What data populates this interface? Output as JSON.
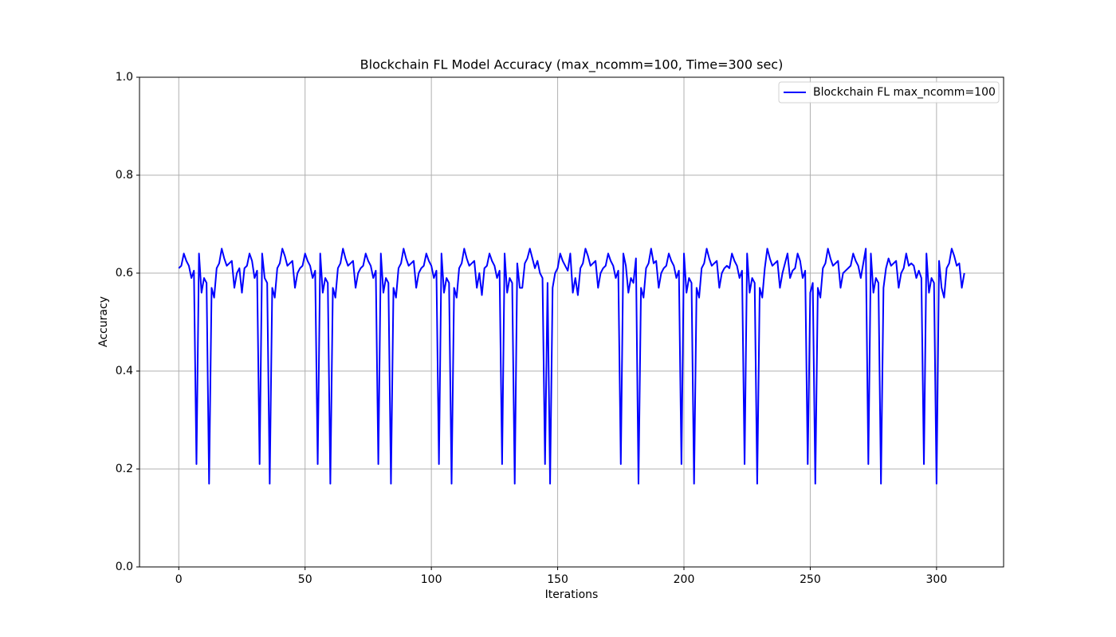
{
  "chart_data": {
    "type": "line",
    "title": "Blockchain FL Model Accuracy (max_ncomm=100, Time=300 sec)",
    "x_label": "Iterations",
    "y_label": "Accuracy",
    "x": [
      0,
      1,
      2,
      3,
      4,
      5,
      6,
      7,
      8,
      9,
      10,
      11,
      12,
      13,
      14,
      15,
      16,
      17,
      18,
      19,
      20,
      21,
      22,
      23,
      24,
      25,
      26,
      27,
      28,
      29,
      30,
      31,
      32,
      33,
      34,
      35,
      36,
      37,
      38,
      39,
      40,
      41,
      42,
      43,
      44,
      45,
      46,
      47,
      48,
      49,
      50,
      51,
      52,
      53,
      54,
      55,
      56,
      57,
      58,
      59,
      60,
      61,
      62,
      63,
      64,
      65,
      66,
      67,
      68,
      69,
      70,
      71,
      72,
      73,
      74,
      75,
      76,
      77,
      78,
      79,
      80,
      81,
      82,
      83,
      84,
      85,
      86,
      87,
      88,
      89,
      90,
      91,
      92,
      93,
      94,
      95,
      96,
      97,
      98,
      99,
      100,
      101,
      102,
      103,
      104,
      105,
      106,
      107,
      108,
      109,
      110,
      111,
      112,
      113,
      114,
      115,
      116,
      117,
      118,
      119,
      120,
      121,
      122,
      123,
      124,
      125,
      126,
      127,
      128,
      129,
      130,
      131,
      132,
      133,
      134,
      135,
      136,
      137,
      138,
      139,
      140,
      141,
      142,
      143,
      144,
      145,
      146,
      147,
      148,
      149,
      150,
      151,
      152,
      153,
      154,
      155,
      156,
      157,
      158,
      159,
      160,
      161,
      162,
      163,
      164,
      165,
      166,
      167,
      168,
      169,
      170,
      171,
      172,
      173,
      174,
      175,
      176,
      177,
      178,
      179,
      180,
      181,
      182,
      183,
      184,
      185,
      186,
      187,
      188,
      189,
      190,
      191,
      192,
      193,
      194,
      195,
      196,
      197,
      198,
      199,
      200,
      201,
      202,
      203,
      204,
      205,
      206,
      207,
      208,
      209,
      210,
      211,
      212,
      213,
      214,
      215,
      216,
      217,
      218,
      219,
      220,
      221,
      222,
      223,
      224,
      225,
      226,
      227,
      228,
      229,
      230,
      231,
      232,
      233,
      234,
      235,
      236,
      237,
      238,
      239,
      240,
      241,
      242,
      243,
      244,
      245,
      246,
      247,
      248,
      249,
      250,
      251,
      252,
      253,
      254,
      255,
      256,
      257,
      258,
      259,
      260,
      261,
      262,
      263,
      264,
      265,
      266,
      267,
      268,
      269,
      270,
      271,
      272,
      273,
      274,
      275,
      276,
      277,
      278,
      279,
      280,
      281,
      282,
      283,
      284,
      285,
      286,
      287,
      288,
      289,
      290,
      291,
      292,
      293,
      294,
      295,
      296,
      297,
      298,
      299,
      300,
      301,
      302,
      303,
      304,
      305,
      306,
      307,
      308,
      309,
      310,
      311
    ],
    "series": [
      {
        "name": "Blockchain FL max_ncomm=100",
        "color": "#0000ff",
        "values": [
          0.61,
          0.615,
          0.64,
          0.625,
          0.615,
          0.59,
          0.605,
          0.21,
          0.64,
          0.56,
          0.59,
          0.58,
          0.17,
          0.57,
          0.55,
          0.61,
          0.62,
          0.65,
          0.63,
          0.615,
          0.62,
          0.625,
          0.57,
          0.6,
          0.61,
          0.56,
          0.61,
          0.615,
          0.64,
          0.625,
          0.59,
          0.605,
          0.21,
          0.64,
          0.59,
          0.58,
          0.17,
          0.57,
          0.55,
          0.61,
          0.62,
          0.65,
          0.635,
          0.615,
          0.62,
          0.625,
          0.57,
          0.6,
          0.61,
          0.615,
          0.64,
          0.625,
          0.615,
          0.59,
          0.605,
          0.21,
          0.64,
          0.56,
          0.59,
          0.58,
          0.17,
          0.57,
          0.55,
          0.61,
          0.62,
          0.65,
          0.63,
          0.615,
          0.62,
          0.625,
          0.57,
          0.6,
          0.61,
          0.615,
          0.64,
          0.625,
          0.615,
          0.59,
          0.605,
          0.21,
          0.64,
          0.56,
          0.59,
          0.58,
          0.17,
          0.57,
          0.55,
          0.61,
          0.62,
          0.65,
          0.63,
          0.615,
          0.62,
          0.625,
          0.57,
          0.6,
          0.61,
          0.615,
          0.64,
          0.625,
          0.615,
          0.59,
          0.605,
          0.21,
          0.64,
          0.56,
          0.59,
          0.58,
          0.17,
          0.57,
          0.55,
          0.61,
          0.62,
          0.65,
          0.63,
          0.615,
          0.62,
          0.625,
          0.57,
          0.6,
          0.555,
          0.61,
          0.615,
          0.64,
          0.625,
          0.615,
          0.59,
          0.605,
          0.21,
          0.64,
          0.56,
          0.59,
          0.58,
          0.17,
          0.62,
          0.57,
          0.57,
          0.62,
          0.63,
          0.65,
          0.63,
          0.61,
          0.625,
          0.6,
          0.59,
          0.21,
          0.58,
          0.17,
          0.57,
          0.6,
          0.61,
          0.64,
          0.625,
          0.615,
          0.605,
          0.64,
          0.56,
          0.59,
          0.555,
          0.61,
          0.62,
          0.65,
          0.635,
          0.615,
          0.62,
          0.625,
          0.57,
          0.6,
          0.61,
          0.615,
          0.64,
          0.625,
          0.615,
          0.59,
          0.605,
          0.21,
          0.64,
          0.615,
          0.56,
          0.59,
          0.58,
          0.63,
          0.17,
          0.57,
          0.55,
          0.61,
          0.62,
          0.65,
          0.62,
          0.625,
          0.57,
          0.6,
          0.61,
          0.615,
          0.64,
          0.625,
          0.615,
          0.59,
          0.605,
          0.21,
          0.64,
          0.56,
          0.59,
          0.58,
          0.17,
          0.57,
          0.55,
          0.61,
          0.62,
          0.65,
          0.63,
          0.615,
          0.62,
          0.625,
          0.57,
          0.6,
          0.61,
          0.615,
          0.61,
          0.64,
          0.625,
          0.615,
          0.59,
          0.605,
          0.21,
          0.64,
          0.56,
          0.59,
          0.58,
          0.17,
          0.57,
          0.55,
          0.61,
          0.65,
          0.63,
          0.615,
          0.62,
          0.625,
          0.57,
          0.6,
          0.62,
          0.64,
          0.59,
          0.605,
          0.61,
          0.64,
          0.625,
          0.59,
          0.605,
          0.21,
          0.56,
          0.58,
          0.17,
          0.57,
          0.55,
          0.61,
          0.62,
          0.65,
          0.63,
          0.615,
          0.62,
          0.625,
          0.57,
          0.6,
          0.605,
          0.61,
          0.615,
          0.64,
          0.625,
          0.615,
          0.59,
          0.62,
          0.65,
          0.21,
          0.64,
          0.56,
          0.59,
          0.58,
          0.17,
          0.57,
          0.61,
          0.63,
          0.615,
          0.62,
          0.625,
          0.57,
          0.6,
          0.61,
          0.64,
          0.615,
          0.62,
          0.615,
          0.59,
          0.605,
          0.59,
          0.21,
          0.64,
          0.56,
          0.59,
          0.58,
          0.17,
          0.625,
          0.57,
          0.55,
          0.61,
          0.62,
          0.65,
          0.635,
          0.615,
          0.62,
          0.57,
          0.6
        ]
      }
    ],
    "xlim": [
      -15.55,
      326.55
    ],
    "xticks": [
      0,
      50,
      100,
      150,
      200,
      250,
      300
    ],
    "ylim": [
      0,
      1
    ],
    "yticks": [
      {
        "value": 0,
        "label": "0.0"
      },
      0.2,
      0.4,
      0.6,
      0.8,
      {
        "value": 1,
        "label": "1.0"
      }
    ],
    "grid": true,
    "legend": "upper-right"
  }
}
